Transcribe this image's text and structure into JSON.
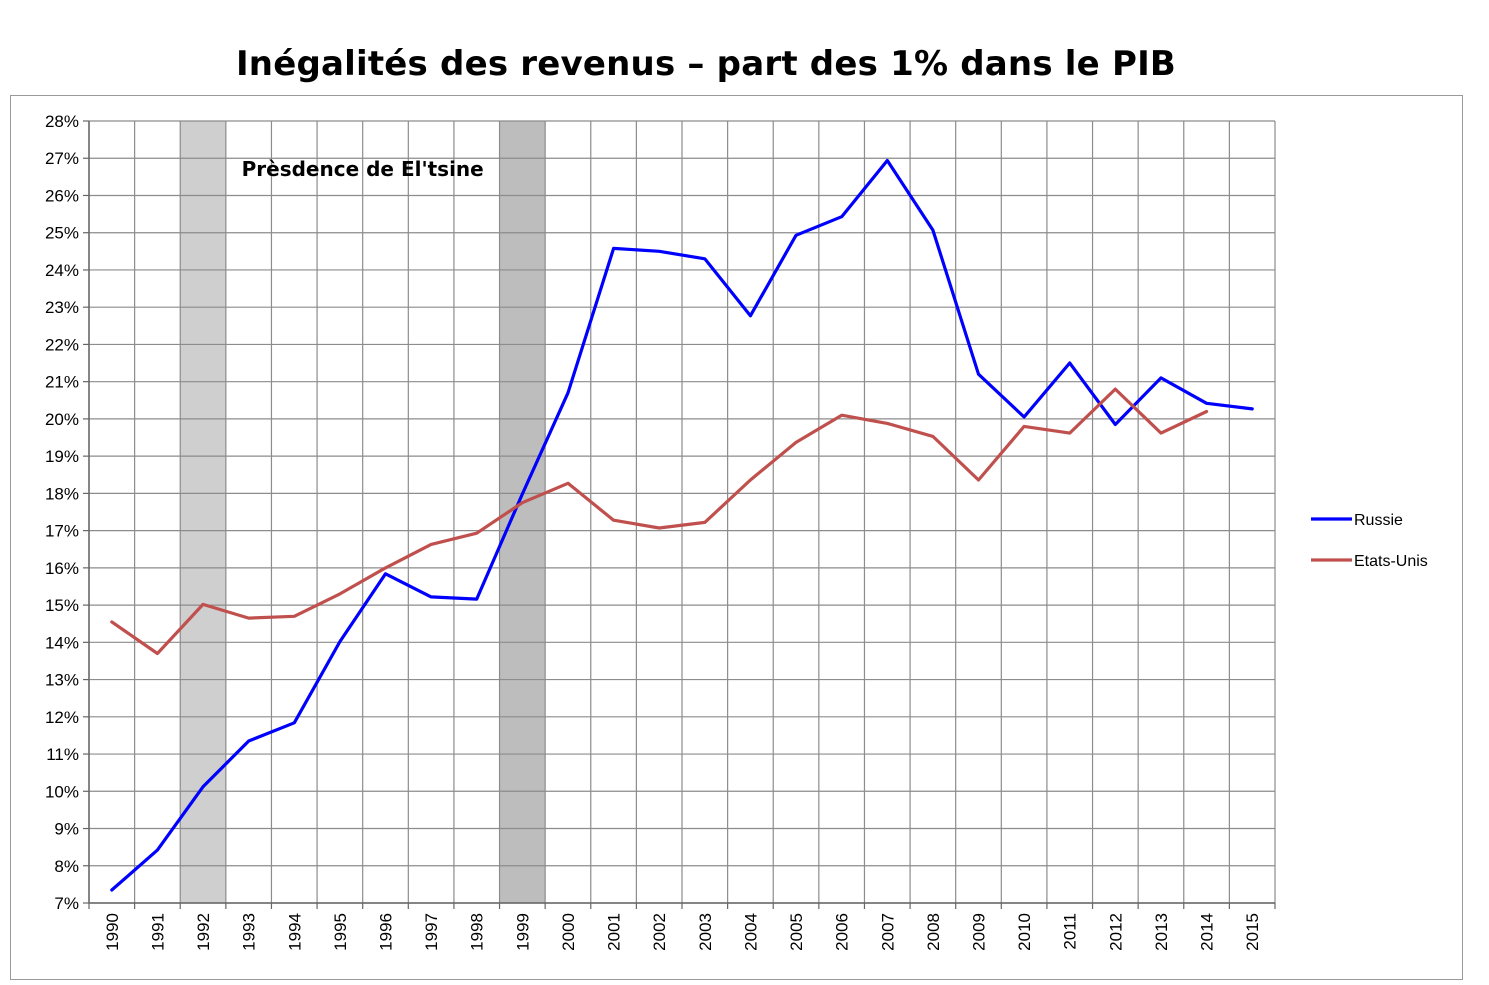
{
  "chart_data": {
    "type": "line",
    "title": "Inégalités des revenus – part des 1% dans le PIB",
    "xlabel": "",
    "ylabel": "",
    "categories": [
      "1990",
      "1991",
      "1992",
      "1993",
      "1994",
      "1995",
      "1996",
      "1997",
      "1998",
      "1999",
      "2000",
      "2001",
      "2002",
      "2003",
      "2004",
      "2005",
      "2006",
      "2007",
      "2008",
      "2009",
      "2010",
      "2011",
      "2012",
      "2013",
      "2014",
      "2015"
    ],
    "y_ticks": [
      "7%",
      "8%",
      "9%",
      "10%",
      "11%",
      "12%",
      "13%",
      "14%",
      "15%",
      "16%",
      "17%",
      "18%",
      "19%",
      "20%",
      "21%",
      "22%",
      "23%",
      "24%",
      "25%",
      "26%",
      "27%",
      "28%"
    ],
    "ylim": [
      7,
      28
    ],
    "grid": true,
    "legend_position": "right",
    "series": [
      {
        "name": "Russie",
        "color": "#0000ff",
        "values": [
          7.35,
          8.42,
          10.12,
          11.35,
          11.84,
          14.02,
          15.84,
          15.22,
          15.16,
          17.98,
          20.7,
          24.58,
          24.5,
          24.3,
          22.77,
          24.93,
          25.43,
          26.94,
          25.07,
          21.2,
          20.05,
          21.5,
          19.85,
          21.1,
          20.42,
          20.27
        ]
      },
      {
        "name": "Etats-Unis",
        "color": "#c0504d",
        "values": [
          14.55,
          13.7,
          15.02,
          14.65,
          14.7,
          15.3,
          16.0,
          16.63,
          16.93,
          17.75,
          18.27,
          17.28,
          17.07,
          17.22,
          18.36,
          19.37,
          20.1,
          19.88,
          19.53,
          18.36,
          19.8,
          19.62,
          20.8,
          19.62,
          20.2,
          null
        ]
      }
    ],
    "shaded_periods": [
      {
        "label": "1992",
        "shade": "#cfcfcf"
      },
      {
        "label": "1999",
        "shade": "#bdbdbd"
      }
    ],
    "annotations": [
      {
        "text": "Prèsdence de El'tsine"
      }
    ]
  }
}
